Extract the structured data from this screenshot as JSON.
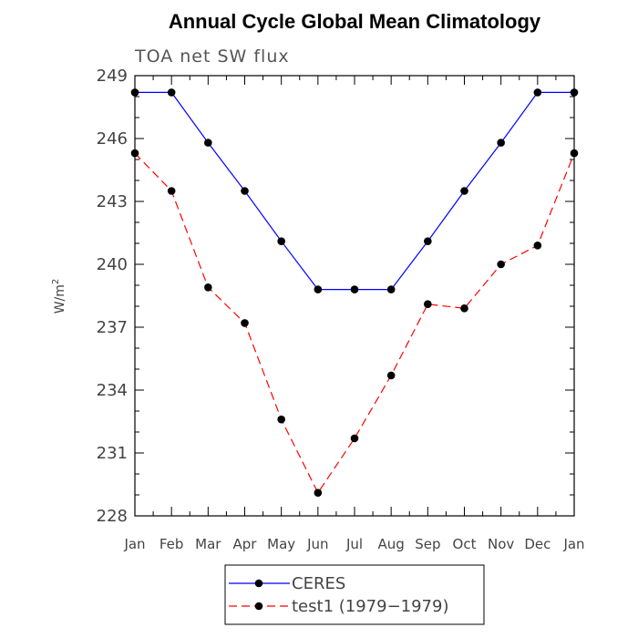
{
  "chart_data": {
    "type": "line",
    "title": "Annual Cycle Global Mean Climatology",
    "subtitle": "TOA net SW flux",
    "xlabel": "",
    "ylabel": "W/m",
    "ylabel_superscript": "2",
    "categories": [
      "Jan",
      "Feb",
      "Mar",
      "Apr",
      "May",
      "Jun",
      "Jul",
      "Aug",
      "Sep",
      "Oct",
      "Nov",
      "Dec",
      "Jan"
    ],
    "ylim": [
      228,
      249
    ],
    "yticks": [
      228,
      231,
      234,
      237,
      240,
      243,
      246,
      249
    ],
    "ytick_labels": [
      "228",
      "231",
      "234",
      "237",
      "240",
      "243",
      "246",
      "249"
    ],
    "series": [
      {
        "name": "CERES",
        "color": "#0000ff",
        "style": "solid",
        "values": [
          248.2,
          248.2,
          245.8,
          243.5,
          241.1,
          238.8,
          238.8,
          238.8,
          241.1,
          243.5,
          245.8,
          248.2,
          248.2
        ]
      },
      {
        "name": "test1 (1979−1979)",
        "color": "#ff0000",
        "style": "dashed",
        "values": [
          245.3,
          243.5,
          238.9,
          237.2,
          232.6,
          229.1,
          231.7,
          234.7,
          238.1,
          237.9,
          240.0,
          240.9,
          245.3
        ]
      }
    ],
    "legend_position": "bottom-center",
    "grid": false
  }
}
